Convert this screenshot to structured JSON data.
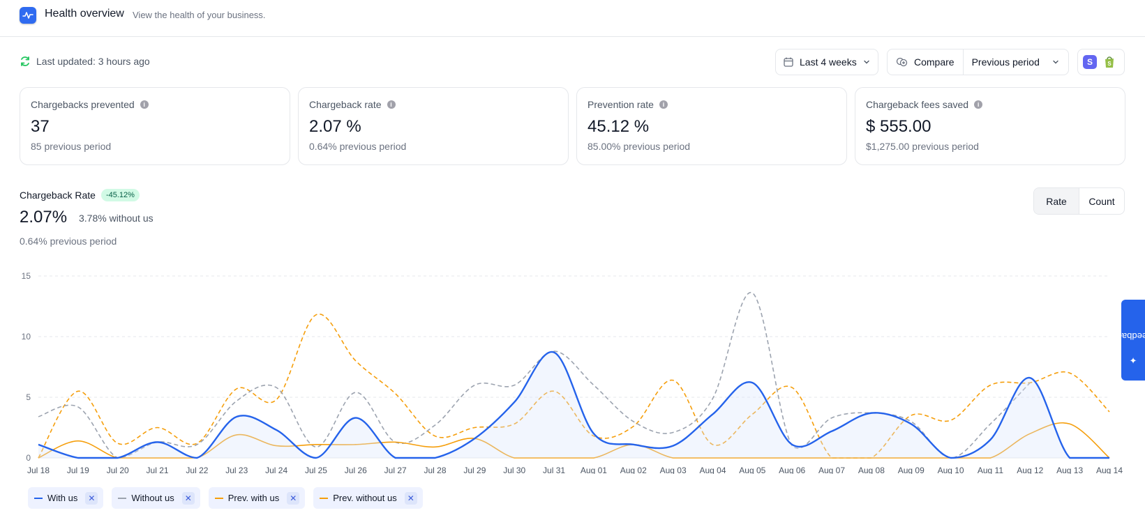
{
  "header": {
    "title": "Health overview",
    "subtitle": "View the health of your business."
  },
  "status": {
    "last_updated": "Last updated: 3 hours ago"
  },
  "controls": {
    "period": "Last 4 weeks",
    "compare_label": "Compare",
    "compare_value": "Previous period",
    "stores": [
      "stripe-store-icon",
      "shopify-store-icon"
    ]
  },
  "cards": [
    {
      "label": "Chargebacks prevented",
      "value": "37",
      "prev": "85 previous period"
    },
    {
      "label": "Chargeback rate",
      "value": "2.07 %",
      "prev": "0.64% previous period"
    },
    {
      "label": "Prevention rate",
      "value": "45.12 %",
      "prev": "85.00% previous period"
    },
    {
      "label": "Chargeback fees saved",
      "value": "$ 555.00",
      "prev": "$1,275.00 previous period"
    }
  ],
  "rate_section": {
    "title": "Chargeback Rate",
    "badge": "-45.12%",
    "value": "2.07%",
    "without": "3.78% without us",
    "prev": "0.64% previous period",
    "toggle": [
      "Rate",
      "Count"
    ],
    "toggle_active": "Rate"
  },
  "chart_data": {
    "type": "line",
    "categories": [
      "Jul 18",
      "Jul 19",
      "Jul 20",
      "Jul 21",
      "Jul 22",
      "Jul 23",
      "Jul 24",
      "Jul 25",
      "Jul 26",
      "Jul 27",
      "Jul 28",
      "Jul 29",
      "Jul 30",
      "Jul 31",
      "Aug 01",
      "Aug 02",
      "Aug 03",
      "Aug 04",
      "Aug 05",
      "Aug 06",
      "Aug 07",
      "Aug 08",
      "Aug 09",
      "Aug 10",
      "Aug 11",
      "Aug 12",
      "Aug 13",
      "Aug 14"
    ],
    "ylim": [
      0,
      15
    ],
    "yticks": [
      0,
      5,
      10,
      15
    ],
    "grid": true,
    "series": [
      {
        "name": "With us",
        "color": "#2563eb",
        "style": "solid",
        "area": true,
        "values": [
          1.1,
          0,
          0,
          1.3,
          0,
          3.4,
          2.3,
          0,
          3.3,
          0,
          0,
          1.6,
          4.6,
          8.7,
          2.0,
          1.1,
          1.0,
          3.6,
          6.2,
          1.1,
          2.2,
          3.7,
          2.8,
          0,
          1.5,
          6.6,
          0,
          0
        ]
      },
      {
        "name": "Without us",
        "color": "#9ca3af",
        "style": "dashed",
        "values": [
          3.4,
          4.2,
          0,
          1.3,
          1.1,
          4.7,
          5.8,
          0.9,
          5.4,
          1.3,
          2.7,
          6.0,
          6.0,
          8.8,
          6.0,
          3.0,
          2.1,
          4.9,
          13.6,
          1.0,
          3.3,
          3.7,
          3.0,
          0,
          2.8,
          6.2,
          null,
          null
        ]
      },
      {
        "name": "Prev. with us",
        "color": "#f59e0b",
        "style": "solid",
        "values": [
          0,
          1.4,
          0,
          0,
          0,
          1.9,
          1.0,
          1.1,
          1.1,
          1.3,
          0.9,
          1.6,
          0,
          0,
          0,
          1.1,
          0,
          0,
          0,
          0,
          0,
          0,
          0,
          0,
          0,
          2.0,
          2.8,
          0
        ]
      },
      {
        "name": "Prev. without us",
        "color": "#f59e0b",
        "style": "dashed",
        "values": [
          0,
          5.5,
          1.2,
          2.5,
          1.2,
          5.7,
          4.8,
          11.8,
          8.0,
          5.3,
          1.8,
          2.5,
          2.8,
          5.5,
          1.8,
          2.6,
          6.4,
          1.1,
          3.6,
          5.8,
          0,
          0,
          3.5,
          3.1,
          6.0,
          6.2,
          7.0,
          3.8
        ]
      }
    ]
  },
  "legend": [
    "With us",
    "Without us",
    "Prev. with us",
    "Prev. without us"
  ],
  "feedback": "Feedback"
}
